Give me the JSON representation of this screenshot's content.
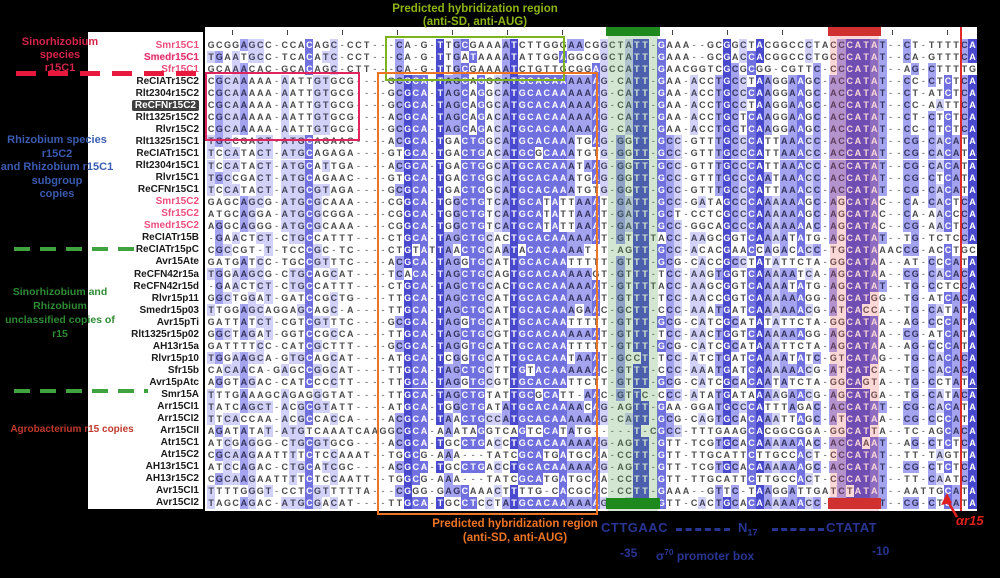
{
  "left_annotations": {
    "sinorhizobium_c1": {
      "lines": [
        "Sinorhizobium species",
        "r15C1"
      ],
      "color": "#D6244A"
    },
    "rhizobium_group": {
      "lines": [
        "Rhizobium species r15C2",
        "and Rhizobium r15C1",
        "subgroup",
        "copies"
      ],
      "color": "#3A5BB0"
    },
    "unclassified_group": {
      "lines": [
        "Sinorhizobium and Rhizobium",
        "unclassified copies of",
        "r15"
      ],
      "color": "#2E8B34"
    },
    "agrobacterium_group": {
      "label": "Agrobacterium r15 copies",
      "color": "#C0392B"
    }
  },
  "notes": {
    "top": {
      "lines": [
        "Predicted hybridization region",
        "(anti-SD, anti-AUG)"
      ],
      "color": "#8CB414"
    },
    "bottom": {
      "lines": [
        "Predicted hybridization region",
        "(anti-SD, anti-AUG)"
      ],
      "color": "#ED7424"
    }
  },
  "promoter": {
    "minus35_motif": "CTTGAAC",
    "spacer_base": "N",
    "spacer_sub": "17",
    "minus10_motif": "CTATAT",
    "minus35_pos": "-35",
    "sigma_base": "σ",
    "sigma_sup": "70",
    "sigma_rest": " promoter box",
    "minus10_pos": "-10"
  },
  "tss": {
    "label": "αr15"
  },
  "colors": {
    "pid_high": "#4949CE",
    "pid_mid": "#7070DF",
    "pid_low": "#A3A3EF",
    "pid_faint": "#D2D2F8",
    "green_box": "#7CB41E",
    "crimson_box": "#E0245E",
    "orange_box": "#ED7424",
    "minus35_band": "rgba(80,160,80,0.26)",
    "minus35_cap": "#1E8A1E",
    "minus10_band": "rgba(235,90,90,0.24)",
    "minus10_cap": "#D03030",
    "tss_line": "#E02828"
  },
  "regions": {
    "boxes": [
      {
        "name": "sinorhizobium-c1-hybridization-box",
        "row_start": 1,
        "row_end": 3,
        "col_start": 22,
        "col_end": 42,
        "color": "#7CB41E"
      },
      {
        "name": "rhizobium-c2-conserved-box",
        "row_start": 4,
        "row_end": 8,
        "col_start": 0,
        "col_end": 17,
        "color": "#E0245E"
      },
      {
        "name": "core-hybridization-box",
        "row_start": 4,
        "row_end": 39,
        "col_start": 21,
        "col_end": 46,
        "color": "#ED7424"
      }
    ],
    "bands": [
      {
        "name": "minus35-column",
        "col_start": 49,
        "col_end": 54,
        "fill": "rgba(80,160,80,0.26)",
        "cap": "#1E8A1E"
      },
      {
        "name": "minus10-column",
        "col_start": 76,
        "col_end": 81,
        "fill": "rgba(235,90,90,0.24)",
        "cap": "#D03030"
      }
    ],
    "tss_col": 92
  },
  "alignment": {
    "rows": [
      {
        "label": "Smr15C1",
        "style": "pink",
        "seq": "GCGGAGCC-CCACAGC-CCT---CA-G-TTGCGAAAATCTTGGGAACGGCTATT-GAAA--GCGGCTACGGCCCTACCCATAT--CT-TTTTCA"
      },
      {
        "label": "Smedr15C1",
        "style": "pink-highlight",
        "seq": "TGAATGCC-TCACATC-CCT---CA-G-TTGATAAAATATTGGAGGCGGCTATT-GAAA--GCGACCACGGCCCTGCCCATAT--CA-GTTTCA"
      },
      {
        "label": "Sfr15C1",
        "style": "pink",
        "seq": "GCAAACAC-GCACAGC-CTT---CA-G-TTGCGAAAATCTGTTGCGGAGCCATT-GAACGGTCGCGCGG-CGTTC-CCCATAT--AG-CTTTTG"
      },
      {
        "label": "ReCIATr15C2",
        "style": "black",
        "seq": "CGCAAAAA-AATTGTGCG----GCGCA-TAGCAGGCATGCACAAAAAAG-CATT-GAA-ACCTGCCTAAGGAAGC-ACCATAT--CC-CTCTCA"
      },
      {
        "label": "Rlt2304r15C2",
        "style": "black",
        "seq": "CGCAAAAA-AATTGTGCG----GCGCA-TAGCAGGCATGCACAAAAAAG-CATT-GAA-ACCTGCCCAAGGAAGC-ACCATAT--CT-ATCTCA"
      },
      {
        "label": "ReCFNr15C2",
        "style": "dark-highlight",
        "seq": "CGCAAAAA-AATTGTGCG----GCGCA-TAGCAGGCATGCACAAAAAAG-CATT-GAA-ACCTGCCTAAGGAAGC-ACCATAT--CC-AATTCA"
      },
      {
        "label": "Rlt1325r15C2",
        "style": "black",
        "seq": "CGCAAAAA-AATTGTGCG----ACGCA-TAGCAGACATGCACAAAAAAG-CATT-GAA-ACCTGCTCAAGGAAGC-ACCATAT--CT-CTCTCA"
      },
      {
        "label": "Rlvr15C2",
        "style": "black",
        "seq": "CGCAAAAA-AATTGTGCG----GCGCA-TAGCAGACATGCACAAAAAAG-CATT-GAA-ACCTGCTCAAGGAAGC-ACCATAT--CC-CTCTCA"
      },
      {
        "label": "Rlt1325r15C1",
        "style": "black",
        "seq": "TGCCGACT-ATGCAGAAC----ACGCA-TGACTGGCATGCACAAATGAG-GGTT-GCC-GTTTGCCCATTAAACC-ACCATAT--CG-CACATA"
      },
      {
        "label": "ReCIATr15C1",
        "style": "black",
        "seq": "TCCATACT-ATGCAGAGA----GTGCA-TGACTGACATGCGCAAATGTG-GGTT-GCC-GTTTGCCCATTAAACC-ACCATAT--CG-CACATA"
      },
      {
        "label": "Rlt2304r15C1",
        "style": "black",
        "seq": "TCCATACT-ATGCATTGA----ACGCA-TGACTGGCATGCACAAATAAG-GGTT-GCC-GTTTGCCCATTAAACC-ACCATAT--CG-CACATA"
      },
      {
        "label": "Rlvr15C1",
        "style": "black",
        "seq": "TGCCGACT-ATGCAGAAC----GTGCA-TGACTGGCATGCACAAATGAG-GGTT-GCC-GTTTGCCCAATAAACC-ACCATAT--CG-CTCATA"
      },
      {
        "label": "ReCFNr15C1",
        "style": "black",
        "seq": "TCCATACT-ATGCGTAGA----GCGCA-TGACTGGCATGCACAAATGTG-GGTT-GCC-GTTTGCCCATTAAACC-ACCATAT--CG-CACATA"
      },
      {
        "label": "Smr15C2",
        "style": "pink",
        "seq": "GAGCAGCG-ATGCGCAAA----CGGCA-TGGCTGTCATGCATATTAAAT-GATT-GCC-GATAGCCCAAAAAAGC-AGCATAC--CA-CACTCA"
      },
      {
        "label": "Sfr15C2",
        "style": "pink",
        "seq": "ATGCAGGA-ATGCGCGGA----CGGCA-TGGCTGTCATGCATATTAAAT-GATT-GCT-CCTCGCCCAAAAAAGC-AGCATAC--CA-AACCCA"
      },
      {
        "label": "Smedr15C2",
        "style": "pink",
        "seq": "AGGCAGGG-ATGCGCAAA----CGGCA-TGGCTGTCATGCATATTAAAT-GATT-GCC-GGCAGCCCAAAAAAAC-AGCATAC--CG-AACTCA"
      },
      {
        "label": "ReCIATr15B",
        "style": "black",
        "seq": "-GAACTCT-CTGCCATTT----CTGCA-TAGCTGCACTGCACAAAAAAT-GTTTTACC-AAGCGGTCAAAATATG-AGCATAT--TG-TCTCCA"
      },
      {
        "label": "ReCIATr15pC",
        "style": "black",
        "seq": "CGCCGT-T-TCCCGC-TC----CTGTATTAACTGCAATACACAAAAT-T-AGTT-GCC-ACACGAACCAGACACC-TGCATAAACCG-ACCTGC"
      },
      {
        "label": "Avr15Ate",
        "style": "black",
        "seq": "GATGATCC-TGCCGTTTC----ACGCA-TAGGTGCATTGCACAATTTTT-GTTT-GCG-CACCGCCTATATTCTA-GGCATAA--AT-CCCATA"
      },
      {
        "label": "ReCFN42r15a",
        "style": "black",
        "seq": "TGGAAGCG-CTGCAGCAT----TCACA-TAGCTGCAGTGCACAAAAAGT-GTTT-TCC-AAGTGGTCAAAAATCA-AGCATAA--CG-CACACA"
      },
      {
        "label": "ReCFN42r15d",
        "style": "black",
        "seq": "-GAACTCT-CTGCCATTT----CTGCA-TAGCTGCACTGCACAAAAAAT-GTTTTACC-AAGCGGTCAAAATATG-AGCATAT--TG-CCTCCA"
      },
      {
        "label": "Rlvr15p11",
        "style": "black",
        "seq": "GGCTGGAT-GATCCGCTG----TTGCA-TAGCTGCATTGCACAAAAAAT-GTTT-TCC-AACCGGTCAAAAAAGG-AGCATGG--TG-ATCACA"
      },
      {
        "label": "Smedr15p03",
        "style": "black",
        "seq": "TTGGAGCAGGAGCAGC-A----TTGCA-TAGCTGCATTGCACAAAGAAC-GCTT-CCC-AAATGATCAAAAAACG-ATCACCA--TG-CATATA"
      },
      {
        "label": "Avr15pTi",
        "style": "black",
        "seq": "GATTATCT-CGTCGTTTC----GCGCA-TAGGTGCATTGCACAATTTTT-GTTT-GCG-CATCGCATATATTCTA-GGCATAA--AG-CCCATA"
      },
      {
        "label": "Rlt1325r15p02",
        "style": "black",
        "seq": "GGCTAGAT-GGTCCGCCA----TTGCA-TAGCTGCGTTGCACAAAAAAT-GTTT-TCC-AACTGGTCAAAAAAGG-AGCATAA--CG-ATCATA"
      },
      {
        "label": "AH13r15a",
        "style": "black",
        "seq": "GATTTTCC-CATCGCTTT----GCGCA-TAGGTGCATTGCACAATTTTT-GTTT-GCG-CATCGCATAAATTCTA-AGCATAA--AG-CCCATA"
      },
      {
        "label": "Rlvr15p10",
        "style": "black",
        "seq": "TGGAAGCA-GTGCAGCAT----ATGCA-TCGGTGCATTGCACAATAAAT-GCCT-TCC-ATCTGATCAAAATATC-GTCATAG--TG-CACACA"
      },
      {
        "label": "Sfr15b",
        "style": "black",
        "seq": "CACAACA-GAGCCGGCAT----TTGCA-TAGCTGCTTTGTACAAAAAAC-GTTT-CCC-AAATGATCAAAAAACG-ATCATCA--TG-CACACA"
      },
      {
        "label": "Avr15pAtc",
        "style": "black",
        "seq": "AGGTAGAC-CATCCCCTT----TTGCA-TAGGTGCGTTGCACAATTCTT-GTTT-GCG-CATCGCACAATATCTA-GGCAGTA--TG-CCTATA"
      },
      {
        "label": "Smr15A",
        "style": "black",
        "seq": "TTTGAAAGCAGAGGGTAT----TTGCA-TAGCTGTATTGCGCATT-AAC-GTTC-CCC-ATATGATAAAAGAACG-AGCATGA--TG-CATACA"
      },
      {
        "label": "Arr15CI1",
        "style": "black",
        "seq": "TATCAGCT-ACGCGTATT----ATGCA-TGGCTGATATGCACAAAACAG-AGTT-GAA-GGATGCCCATTTAGAC-ACCATAT--CG-CACATA"
      },
      {
        "label": "Arr15CI2",
        "style": "black",
        "seq": "TTCACCAA-ACGCCACCA----ACGCA-TAACTGCCATGCACAAAAAAG-CATT-GCG-CAGTGCACAAATTAGC-ATCATAA--CG-CCCATA"
      },
      {
        "label": "Arr15CII",
        "style": "black",
        "seq": "AGATATAT-ATGTCAAATCAAGGCGCA-AAATAGGTCAGTCCATATG-----T-CGCC-TTTGAAGCACGGCGGA-GGCATTA--TC-AGCACA"
      },
      {
        "label": "Atr15C1",
        "style": "black",
        "seq": "ATCGAGGG-CTGCGTGCG----ACGCA-TGCCTGACCTGCACAAAAAAG-AGTT-GTT-TCGTGCACAAAAAAAC-ACCAAAT--AG-CTCTCA"
      },
      {
        "label": "Atr15C2",
        "style": "black",
        "seq": "CGCAAGAATTTTCTCCAAAT--TGGCG-AAA---TATCGCATGATGCAA-CCTT-GTT-TTGCATTCTTGCCACT-CCCATAT--TT-TAGTTA"
      },
      {
        "label": "AH13r15C1",
        "style": "black",
        "seq": "ATCCAGAC-CTGCATCGC----ACGCA-TGCCTGACCTGCACAAAAAAG-AGTT-GTT-TCGTGCACAAAAAAGC-ACCATAT--CG-CTCTCA"
      },
      {
        "label": "AH13r15C2",
        "style": "black",
        "seq": "CGCAAGAATTTTCTCCAATT--TGGCG-AAA---TATCGCATGATGCAA-CCTT-GTT-TTGCATTCTTGCCACT-CCCATAT--TT-CAATCA"
      },
      {
        "label": "Avr15CI1",
        "style": "black",
        "seq": "TTTTGGGT-CCTCGTTTTTA---CGGG-GAGCAAACTTTTG-CACGCAC-CCTT-GAAA--GTTC-TAAGGATTGATCTATAT--AATTGCATA"
      },
      {
        "label": "Avr15CI2",
        "style": "black",
        "seq": "TAGCAGAC-ATGCGACAT----TTGCA-TGCCTCCTATGCACAAAAAAG-CATT-GTT-CACTGCACAAAAAACC-ACCATAT--CG-CTCATA"
      }
    ]
  }
}
